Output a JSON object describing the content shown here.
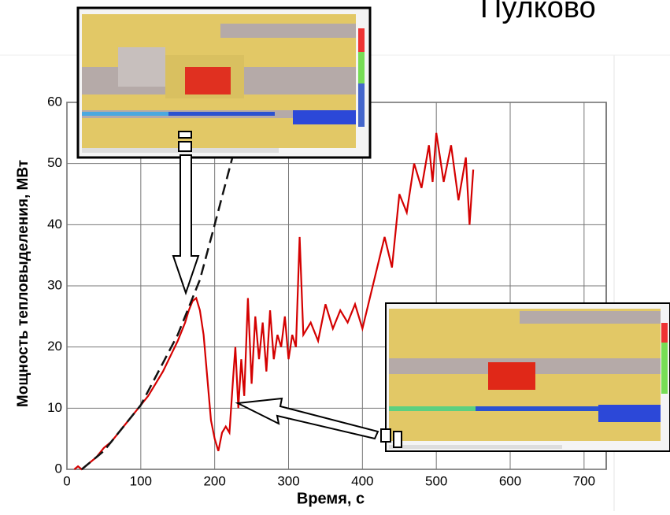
{
  "title": "Пулково",
  "chart_data": {
    "type": "line",
    "xlabel": "Время, с",
    "ylabel": "Мощность тепловыделения, МВт",
    "xlim": [
      0,
      730
    ],
    "ylim": [
      0,
      60
    ],
    "xticks": [
      0,
      100,
      200,
      300,
      400,
      500,
      600,
      700
    ],
    "yticks": [
      0,
      10,
      20,
      30,
      40,
      50,
      60
    ],
    "grid": true,
    "series": [
      {
        "color": "#d40000",
        "dash": false,
        "x": [
          10,
          15,
          20,
          30,
          40,
          50,
          60,
          70,
          80,
          90,
          100,
          110,
          120,
          130,
          140,
          150,
          160,
          165,
          170,
          175,
          180,
          185,
          190,
          195,
          200,
          205,
          210,
          215,
          220,
          225,
          228,
          232,
          236,
          240,
          245,
          250,
          255,
          260,
          265,
          270,
          275,
          280,
          285,
          290,
          295,
          300,
          305,
          310,
          315,
          320,
          330,
          340,
          350,
          360,
          370,
          380,
          390,
          400,
          410,
          420,
          430,
          440,
          450,
          460,
          470,
          480,
          490,
          495,
          500,
          510,
          520,
          530,
          540,
          545,
          550
        ],
        "values": [
          0,
          0.5,
          0,
          1,
          2,
          3.5,
          4.5,
          6,
          7.5,
          9,
          10.5,
          12,
          14,
          16,
          18.5,
          21,
          24,
          26,
          27.5,
          28,
          26,
          22,
          15,
          8,
          5,
          3,
          6,
          7,
          6,
          15,
          20,
          10,
          18,
          12,
          28,
          14,
          25,
          18,
          24,
          16,
          26,
          18,
          22,
          20,
          25,
          18,
          22,
          20,
          38,
          22,
          24,
          21,
          27,
          23,
          26,
          24,
          27,
          23,
          28,
          33,
          38,
          33,
          45,
          42,
          50,
          46,
          53,
          47,
          55,
          47,
          53,
          44,
          51,
          40,
          49
        ]
      },
      {
        "color": "#111111",
        "dash": true,
        "x": [
          20,
          50,
          100,
          150,
          180,
          200,
          224
        ],
        "values": [
          0,
          3,
          10.5,
          22,
          31,
          40,
          51
        ]
      }
    ]
  }
}
